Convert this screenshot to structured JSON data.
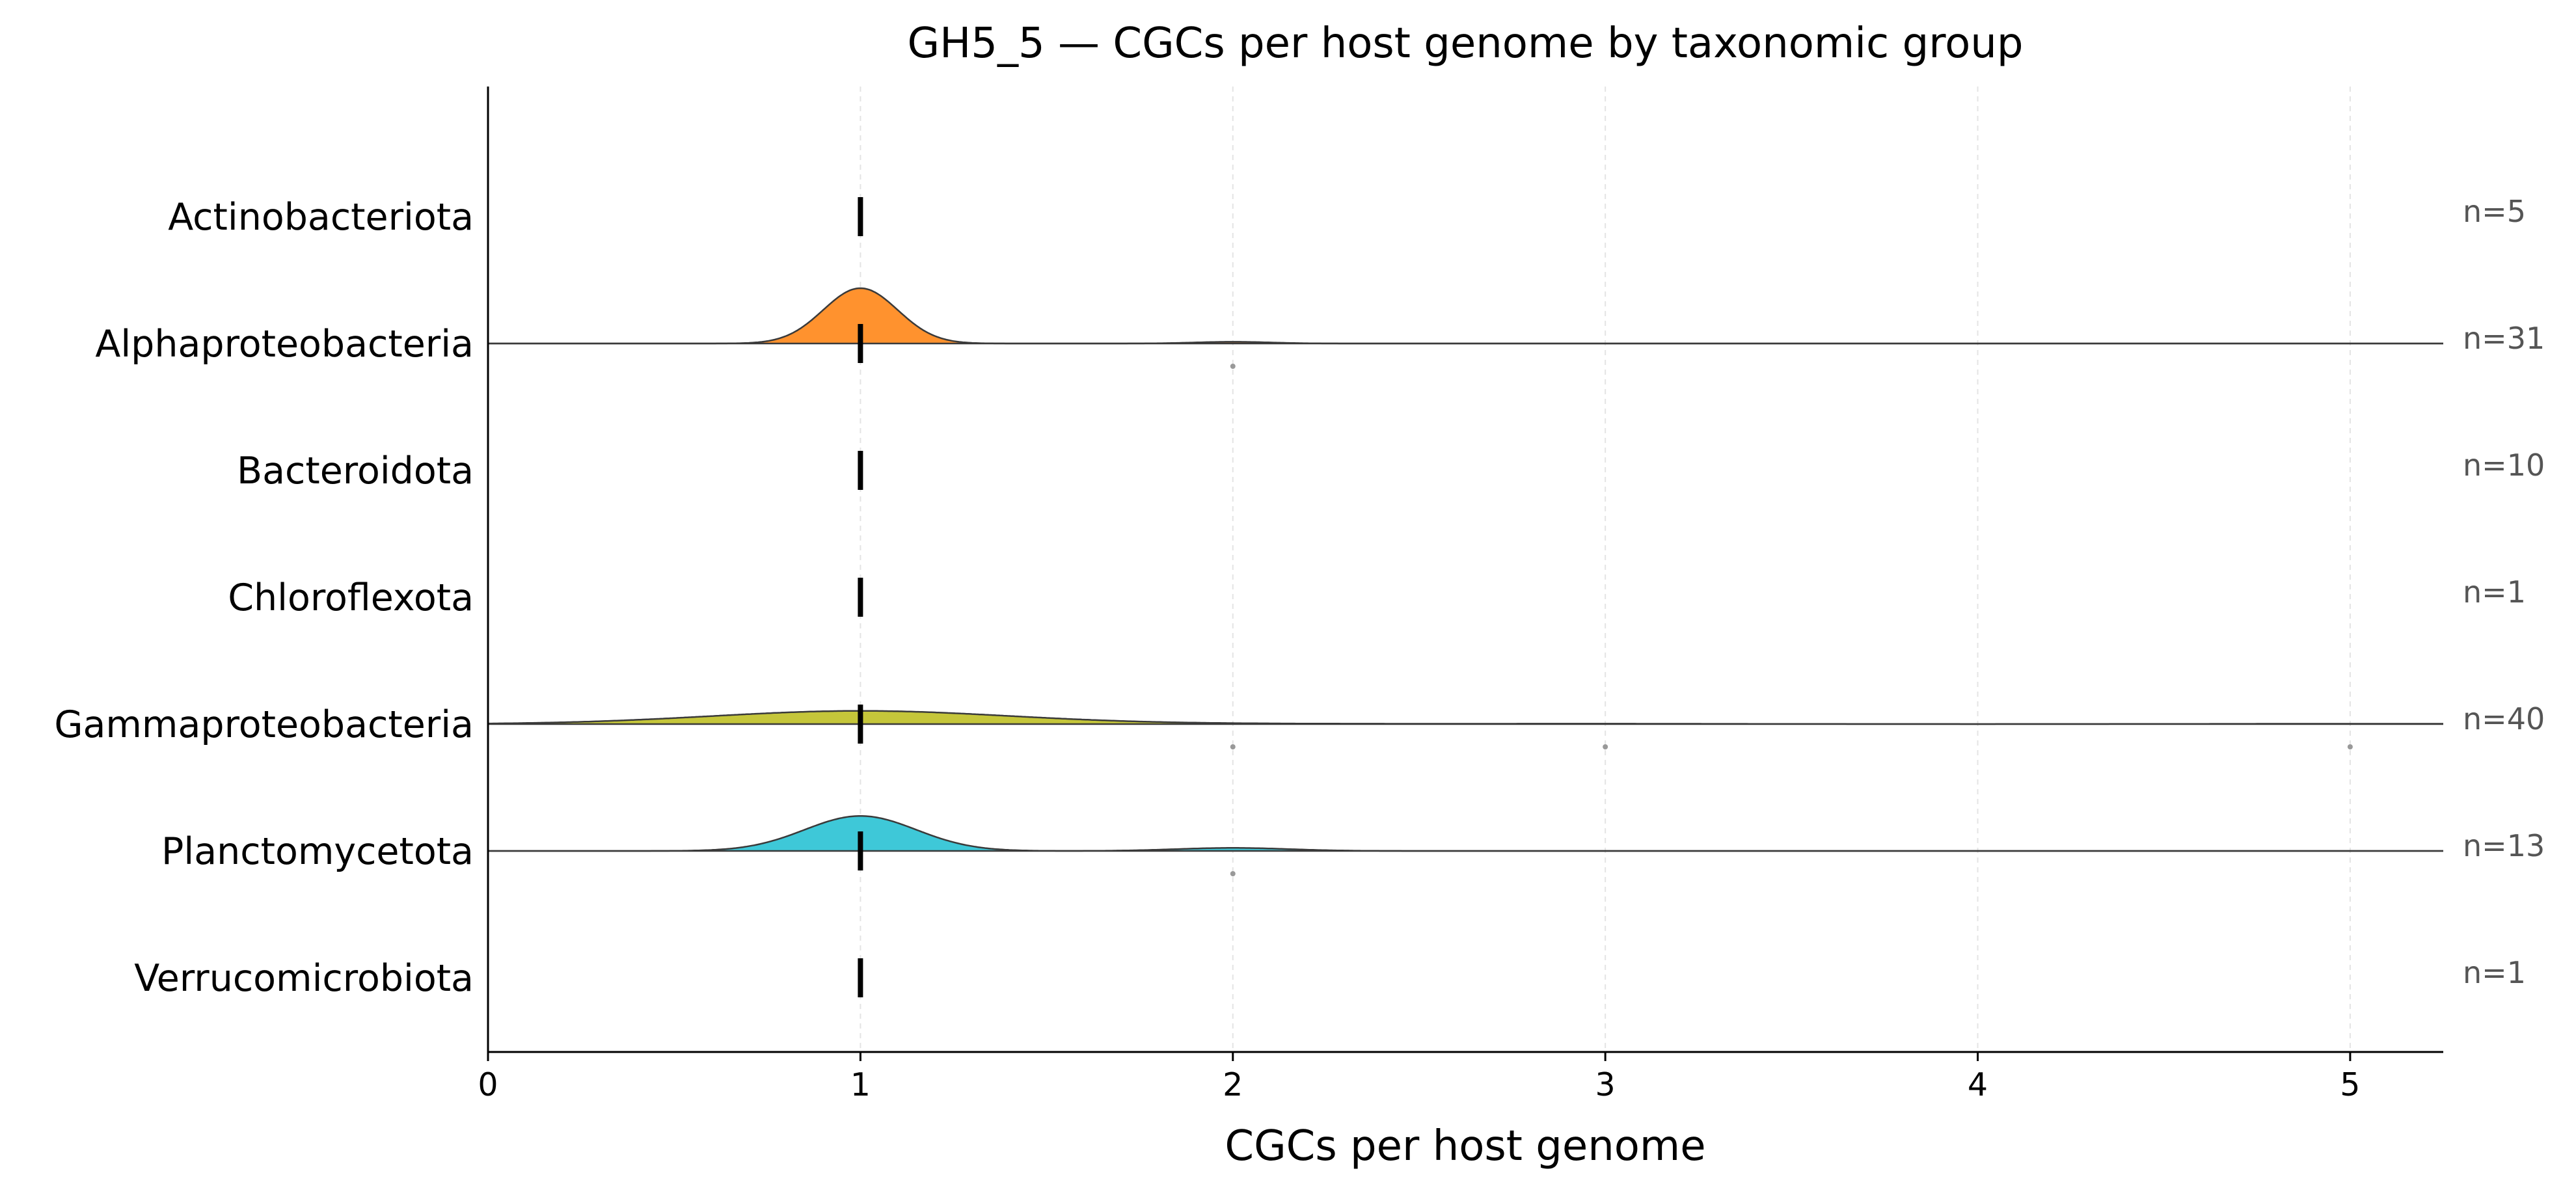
{
  "chart_data": {
    "type": "ridgeline",
    "title": "GH5_5 — CGCs per host genome by taxonomic group",
    "xlabel": "CGCs per host genome",
    "ylabel": "",
    "xlim": [
      0,
      5.25
    ],
    "xticks": [
      "0",
      "1",
      "2",
      "3",
      "4",
      "5"
    ],
    "grid": "vertical dashed, light gray",
    "groups": [
      {
        "name": "Actinobacteriota",
        "n_label": "n=5",
        "median": 1,
        "density": null,
        "points": []
      },
      {
        "name": "Alphaproteobacteria",
        "n_label": "n=31",
        "median": 1,
        "color": "#ff922e",
        "density": [
          {
            "mean": 1,
            "sd": 0.1,
            "weight": 0.97
          },
          {
            "mean": 2,
            "sd": 0.1,
            "weight": 0.03
          }
        ],
        "points": [
          2
        ]
      },
      {
        "name": "Bacteroidota",
        "n_label": "n=10",
        "median": 1,
        "density": null,
        "points": []
      },
      {
        "name": "Chloroflexota",
        "n_label": "n=1",
        "median": 1,
        "density": null,
        "points": []
      },
      {
        "name": "Gammaproteobacteria",
        "n_label": "n=40",
        "median": 1,
        "color": "#c5c63a",
        "density": [
          {
            "mean": 1,
            "sd": 0.4,
            "weight": 0.925
          },
          {
            "mean": 2,
            "sd": 0.4,
            "weight": 0.025
          },
          {
            "mean": 3,
            "sd": 0.4,
            "weight": 0.025
          },
          {
            "mean": 5,
            "sd": 0.4,
            "weight": 0.025
          }
        ],
        "points": [
          2,
          3,
          5
        ]
      },
      {
        "name": "Planctomycetota",
        "n_label": "n=13",
        "median": 1,
        "color": "#3ec8d8",
        "density": [
          {
            "mean": 1,
            "sd": 0.15,
            "weight": 0.92
          },
          {
            "mean": 2,
            "sd": 0.15,
            "weight": 0.08
          }
        ],
        "points": [
          2
        ]
      },
      {
        "name": "Verrucomicrobiota",
        "n_label": "n=1",
        "median": 1,
        "density": null,
        "points": []
      }
    ]
  }
}
